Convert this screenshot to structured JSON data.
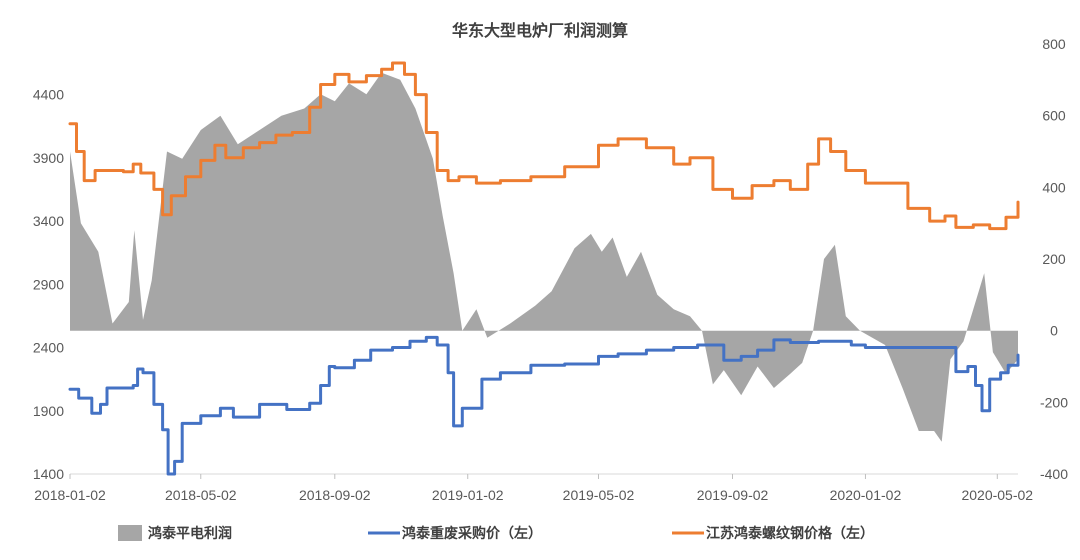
{
  "chart_data": {
    "type": "line",
    "title": "华东大型电炉厂利润测算",
    "x_ticks": [
      "2018-01-02",
      "2018-05-02",
      "2018-09-02",
      "2019-01-02",
      "2019-05-02",
      "2019-09-02",
      "2020-01-02",
      "2020-05-02"
    ],
    "x_range": [
      "2018-01-02",
      "2020-05-21"
    ],
    "left_axis": {
      "ticks": [
        1400,
        1900,
        2400,
        2900,
        3400,
        3900,
        4400
      ],
      "range": [
        1400,
        4800
      ]
    },
    "right_axis": {
      "ticks": [
        -400,
        -200,
        0,
        200,
        400,
        600,
        800
      ],
      "range": [
        -400,
        800
      ]
    },
    "legend_position": "bottom",
    "series": [
      {
        "name": "鸿泰平电利润",
        "type": "area",
        "axis": "right",
        "color": "#a6a6a6",
        "points": [
          [
            "2018-01-02",
            500
          ],
          [
            "2018-01-12",
            300
          ],
          [
            "2018-01-28",
            220
          ],
          [
            "2018-02-10",
            20
          ],
          [
            "2018-02-25",
            80
          ],
          [
            "2018-03-02",
            280
          ],
          [
            "2018-03-10",
            30
          ],
          [
            "2018-03-18",
            140
          ],
          [
            "2018-04-01",
            500
          ],
          [
            "2018-04-15",
            480
          ],
          [
            "2018-05-02",
            560
          ],
          [
            "2018-05-20",
            600
          ],
          [
            "2018-06-05",
            520
          ],
          [
            "2018-06-25",
            560
          ],
          [
            "2018-07-15",
            600
          ],
          [
            "2018-08-05",
            620
          ],
          [
            "2018-08-20",
            660
          ],
          [
            "2018-09-02",
            640
          ],
          [
            "2018-09-15",
            690
          ],
          [
            "2018-10-01",
            660
          ],
          [
            "2018-10-15",
            720
          ],
          [
            "2018-11-01",
            700
          ],
          [
            "2018-11-15",
            620
          ],
          [
            "2018-12-01",
            480
          ],
          [
            "2018-12-10",
            320
          ],
          [
            "2018-12-20",
            160
          ],
          [
            "2018-12-28",
            0
          ],
          [
            "2019-01-10",
            60
          ],
          [
            "2019-01-20",
            -20
          ],
          [
            "2019-02-10",
            20
          ],
          [
            "2019-03-05",
            70
          ],
          [
            "2019-03-20",
            110
          ],
          [
            "2019-04-10",
            230
          ],
          [
            "2019-04-25",
            270
          ],
          [
            "2019-05-05",
            220
          ],
          [
            "2019-05-15",
            260
          ],
          [
            "2019-05-28",
            150
          ],
          [
            "2019-06-10",
            220
          ],
          [
            "2019-06-25",
            100
          ],
          [
            "2019-07-10",
            60
          ],
          [
            "2019-07-25",
            40
          ],
          [
            "2019-08-05",
            0
          ],
          [
            "2019-08-15",
            -150
          ],
          [
            "2019-08-25",
            -110
          ],
          [
            "2019-09-10",
            -180
          ],
          [
            "2019-09-25",
            -100
          ],
          [
            "2019-10-10",
            -160
          ],
          [
            "2019-10-25",
            -120
          ],
          [
            "2019-11-05",
            -90
          ],
          [
            "2019-11-15",
            0
          ],
          [
            "2019-11-25",
            200
          ],
          [
            "2019-12-05",
            240
          ],
          [
            "2019-12-15",
            40
          ],
          [
            "2019-12-28",
            0
          ],
          [
            "2020-01-20",
            -40
          ],
          [
            "2020-02-05",
            -160
          ],
          [
            "2020-02-20",
            -280
          ],
          [
            "2020-03-05",
            -280
          ],
          [
            "2020-03-12",
            -310
          ],
          [
            "2020-03-20",
            -80
          ],
          [
            "2020-04-01",
            -30
          ],
          [
            "2020-04-10",
            60
          ],
          [
            "2020-04-20",
            160
          ],
          [
            "2020-04-28",
            -60
          ],
          [
            "2020-05-10",
            -120
          ],
          [
            "2020-05-21",
            -80
          ]
        ]
      },
      {
        "name": "鸿泰重废采购价（左）",
        "type": "line",
        "axis": "left",
        "color": "#4472c4",
        "points": [
          [
            "2018-01-02",
            2070
          ],
          [
            "2018-01-10",
            2000
          ],
          [
            "2018-01-22",
            1880
          ],
          [
            "2018-01-30",
            1950
          ],
          [
            "2018-02-05",
            2080
          ],
          [
            "2018-03-01",
            2100
          ],
          [
            "2018-03-05",
            2230
          ],
          [
            "2018-03-10",
            2200
          ],
          [
            "2018-03-20",
            1950
          ],
          [
            "2018-03-28",
            1750
          ],
          [
            "2018-04-02",
            1400
          ],
          [
            "2018-04-08",
            1500
          ],
          [
            "2018-04-15",
            1800
          ],
          [
            "2018-05-02",
            1860
          ],
          [
            "2018-05-20",
            1920
          ],
          [
            "2018-06-01",
            1850
          ],
          [
            "2018-06-25",
            1950
          ],
          [
            "2018-07-20",
            1910
          ],
          [
            "2018-08-10",
            1960
          ],
          [
            "2018-08-20",
            2100
          ],
          [
            "2018-08-28",
            2250
          ],
          [
            "2018-09-02",
            2240
          ],
          [
            "2018-09-20",
            2300
          ],
          [
            "2018-10-05",
            2380
          ],
          [
            "2018-10-25",
            2400
          ],
          [
            "2018-11-10",
            2450
          ],
          [
            "2018-11-25",
            2480
          ],
          [
            "2018-12-05",
            2420
          ],
          [
            "2018-12-15",
            2200
          ],
          [
            "2018-12-20",
            1780
          ],
          [
            "2018-12-28",
            1920
          ],
          [
            "2019-01-15",
            2150
          ],
          [
            "2019-02-01",
            2200
          ],
          [
            "2019-03-01",
            2260
          ],
          [
            "2019-04-01",
            2270
          ],
          [
            "2019-05-02",
            2330
          ],
          [
            "2019-05-20",
            2350
          ],
          [
            "2019-06-15",
            2380
          ],
          [
            "2019-07-10",
            2400
          ],
          [
            "2019-08-01",
            2420
          ],
          [
            "2019-08-25",
            2300
          ],
          [
            "2019-09-10",
            2330
          ],
          [
            "2019-09-25",
            2380
          ],
          [
            "2019-10-10",
            2460
          ],
          [
            "2019-10-25",
            2440
          ],
          [
            "2019-11-20",
            2450
          ],
          [
            "2019-12-20",
            2420
          ],
          [
            "2020-01-02",
            2400
          ],
          [
            "2020-02-01",
            2400
          ],
          [
            "2020-03-20",
            2400
          ],
          [
            "2020-03-25",
            2210
          ],
          [
            "2020-04-05",
            2250
          ],
          [
            "2020-04-12",
            2100
          ],
          [
            "2020-04-18",
            1900
          ],
          [
            "2020-04-25",
            2150
          ],
          [
            "2020-05-05",
            2200
          ],
          [
            "2020-05-12",
            2260
          ],
          [
            "2020-05-21",
            2340
          ]
        ]
      },
      {
        "name": "江苏鸿泰螺纹钢价格（左）",
        "type": "line",
        "axis": "left",
        "color": "#ed7d31",
        "points": [
          [
            "2018-01-02",
            4170
          ],
          [
            "2018-01-08",
            3950
          ],
          [
            "2018-01-15",
            3720
          ],
          [
            "2018-01-25",
            3800
          ],
          [
            "2018-02-20",
            3790
          ],
          [
            "2018-03-01",
            3850
          ],
          [
            "2018-03-08",
            3780
          ],
          [
            "2018-03-20",
            3650
          ],
          [
            "2018-03-28",
            3450
          ],
          [
            "2018-04-05",
            3600
          ],
          [
            "2018-04-18",
            3750
          ],
          [
            "2018-05-02",
            3880
          ],
          [
            "2018-05-15",
            4000
          ],
          [
            "2018-05-25",
            3900
          ],
          [
            "2018-06-10",
            3980
          ],
          [
            "2018-06-25",
            4020
          ],
          [
            "2018-07-10",
            4080
          ],
          [
            "2018-07-25",
            4100
          ],
          [
            "2018-08-10",
            4300
          ],
          [
            "2018-08-20",
            4480
          ],
          [
            "2018-09-02",
            4560
          ],
          [
            "2018-09-15",
            4500
          ],
          [
            "2018-10-01",
            4550
          ],
          [
            "2018-10-15",
            4600
          ],
          [
            "2018-10-25",
            4650
          ],
          [
            "2018-11-05",
            4560
          ],
          [
            "2018-11-15",
            4400
          ],
          [
            "2018-11-25",
            4100
          ],
          [
            "2018-12-05",
            3800
          ],
          [
            "2018-12-15",
            3720
          ],
          [
            "2018-12-25",
            3750
          ],
          [
            "2019-01-10",
            3700
          ],
          [
            "2019-02-01",
            3720
          ],
          [
            "2019-03-01",
            3750
          ],
          [
            "2019-04-01",
            3830
          ],
          [
            "2019-05-02",
            4000
          ],
          [
            "2019-05-20",
            4050
          ],
          [
            "2019-06-15",
            3980
          ],
          [
            "2019-07-10",
            3850
          ],
          [
            "2019-07-25",
            3900
          ],
          [
            "2019-08-15",
            3650
          ],
          [
            "2019-09-02",
            3580
          ],
          [
            "2019-09-20",
            3680
          ],
          [
            "2019-10-10",
            3720
          ],
          [
            "2019-10-25",
            3650
          ],
          [
            "2019-11-10",
            3850
          ],
          [
            "2019-11-20",
            4050
          ],
          [
            "2019-12-01",
            3950
          ],
          [
            "2019-12-15",
            3800
          ],
          [
            "2020-01-02",
            3700
          ],
          [
            "2020-02-01",
            3700
          ],
          [
            "2020-02-10",
            3500
          ],
          [
            "2020-03-01",
            3400
          ],
          [
            "2020-03-15",
            3440
          ],
          [
            "2020-03-25",
            3350
          ],
          [
            "2020-04-10",
            3370
          ],
          [
            "2020-04-25",
            3340
          ],
          [
            "2020-05-10",
            3430
          ],
          [
            "2020-05-21",
            3550
          ]
        ]
      }
    ]
  }
}
